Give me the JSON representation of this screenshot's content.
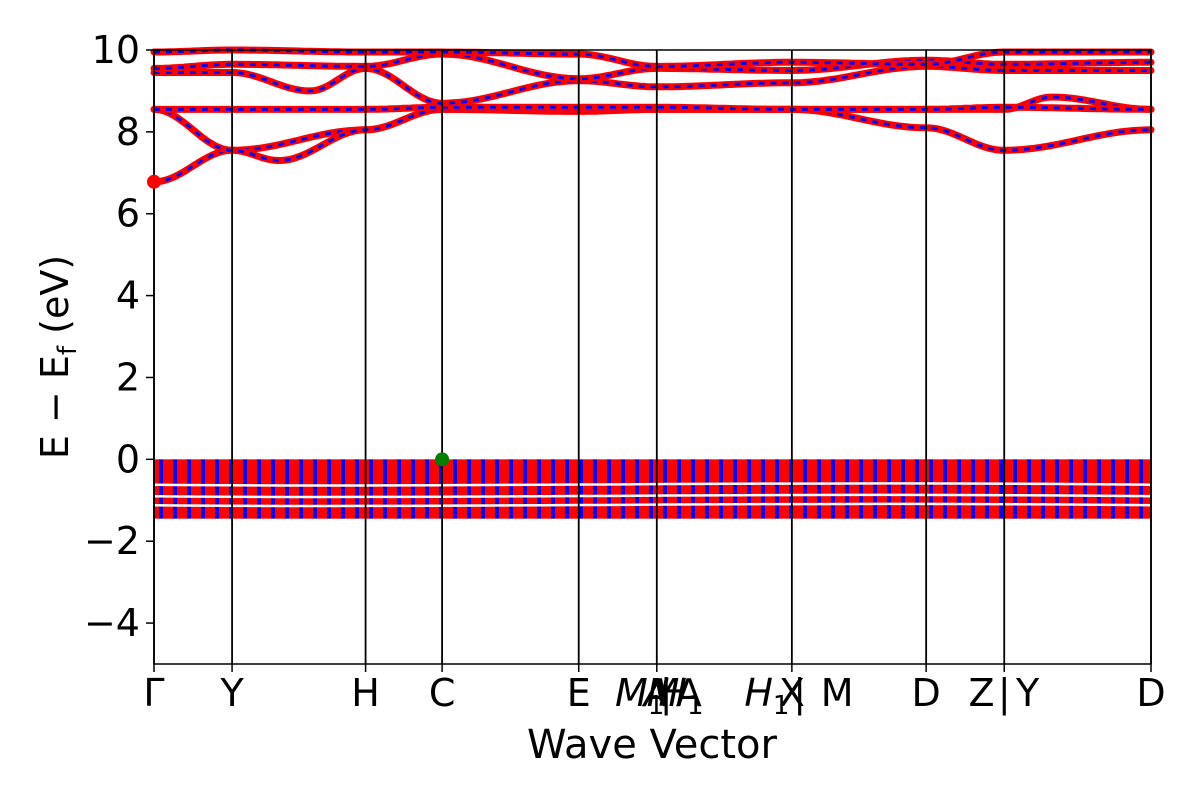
{
  "chart_data": {
    "type": "line",
    "title": "",
    "xlabel": "Wave Vector",
    "ylabel": "E − E_f (eV)",
    "ylabel_main": "E − E",
    "ylabel_sub": "f",
    "ylabel_unit": "(eV)",
    "ylim": [
      -5,
      10
    ],
    "xlim": [
      0,
      12.77
    ],
    "yticks": [
      -4,
      -2,
      0,
      2,
      4,
      6,
      8,
      10
    ],
    "ytick_labels": [
      "−4",
      "−2",
      "0",
      "2",
      "4",
      "6",
      "8",
      "10"
    ],
    "grid": false,
    "legend": "none",
    "kpoints": [
      {
        "label": "Γ",
        "x": 0.0,
        "sub": "",
        "line": true
      },
      {
        "label": "Y",
        "x": 1.0,
        "sub": "",
        "line": true
      },
      {
        "label": "H",
        "x": 2.71,
        "sub": "",
        "line": true
      },
      {
        "label": "C",
        "x": 3.69,
        "sub": "",
        "line": true
      },
      {
        "label": "E",
        "x": 5.44,
        "sub": "",
        "line": true
      },
      {
        "label": "M",
        "x": 6.22,
        "sub": "1",
        "italic": true,
        "line": false
      },
      {
        "label": "M",
        "x": 6.52,
        "sub": "",
        "italic": true,
        "line": false
      },
      {
        "label": "A",
        "x": 6.44,
        "sub": "",
        "italic": true,
        "line": true
      },
      {
        "label": "|",
        "x": 6.56,
        "sub": "",
        "line": false
      },
      {
        "label": "H",
        "x": 6.75,
        "sub": "1",
        "italic": true,
        "line": false
      },
      {
        "label": "A",
        "x": 6.85,
        "sub": "",
        "line": false
      },
      {
        "label": "H",
        "x": 7.85,
        "sub": "1",
        "italic": true,
        "line": false
      },
      {
        "label": "X",
        "x": 8.17,
        "sub": "",
        "line": true
      },
      {
        "label": "|",
        "x": 8.27,
        "sub": "",
        "line": false
      },
      {
        "label": "M",
        "x": 8.75,
        "sub": "",
        "line": false
      },
      {
        "label": "D",
        "x": 9.89,
        "sub": "",
        "line": true
      },
      {
        "label": "Z",
        "x": 10.6,
        "sub": "",
        "line": false
      },
      {
        "label": "|",
        "x": 10.89,
        "sub": "",
        "line": true
      },
      {
        "label": "Y",
        "x": 11.19,
        "sub": "",
        "line": false
      },
      {
        "label": "D",
        "x": 12.77,
        "sub": "",
        "line": true
      }
    ],
    "segments": [
      0.0,
      1.0,
      2.71,
      3.69,
      5.44,
      6.44,
      8.17,
      9.89,
      10.89,
      12.77
    ],
    "band_colors": {
      "spin_up": "#ff0000",
      "spin_down": "#0000ff"
    },
    "conduction_bands": [
      {
        "x": [
          0.0,
          1.0,
          2.71,
          3.69,
          5.44,
          6.44,
          8.17,
          9.89,
          10.89,
          12.77
        ],
        "y": [
          6.78,
          7.55,
          8.05,
          8.55,
          8.5,
          8.55,
          8.55,
          8.1,
          7.55,
          8.05
        ]
      },
      {
        "x": [
          0.0,
          1.0,
          1.6,
          2.71,
          3.69,
          5.44,
          6.44,
          8.17,
          9.89,
          10.89,
          11.5,
          12.77
        ],
        "y": [
          8.55,
          7.55,
          7.3,
          8.05,
          8.55,
          8.55,
          8.55,
          8.55,
          8.55,
          8.55,
          8.85,
          8.55
        ]
      },
      {
        "x": [
          0.0,
          1.0,
          2.71,
          3.69,
          5.44,
          6.44,
          8.17,
          9.89,
          10.89,
          12.77
        ],
        "y": [
          8.55,
          8.55,
          8.55,
          8.6,
          8.6,
          8.6,
          8.55,
          8.55,
          8.6,
          8.55
        ]
      },
      {
        "x": [
          0.0,
          1.0,
          2.0,
          2.71,
          3.69,
          5.44,
          6.44,
          8.17,
          9.89,
          10.89,
          12.77
        ],
        "y": [
          9.45,
          9.45,
          9.0,
          9.55,
          8.7,
          9.25,
          9.1,
          9.2,
          9.6,
          9.5,
          9.5
        ]
      },
      {
        "x": [
          0.0,
          1.0,
          2.71,
          3.69,
          5.44,
          6.44,
          8.17,
          9.89,
          10.89,
          12.77
        ],
        "y": [
          9.55,
          9.65,
          9.6,
          9.9,
          9.3,
          9.55,
          9.5,
          9.75,
          9.65,
          9.7
        ]
      },
      {
        "x": [
          0.0,
          1.0,
          2.71,
          3.69,
          5.44,
          6.44,
          8.17,
          9.89,
          10.89,
          12.77
        ],
        "y": [
          9.95,
          10.0,
          9.95,
          9.95,
          9.9,
          9.6,
          9.7,
          9.65,
          9.95,
          9.95
        ]
      }
    ],
    "valence_band_region": {
      "top": 0.0,
      "bottom": -1.45,
      "gap_lines": [
        -0.62,
        -0.9,
        -1.12
      ]
    },
    "markers": [
      {
        "name": "cbm",
        "x": 0.0,
        "y": 6.78,
        "color": "#ff0000"
      },
      {
        "name": "vbm",
        "x": 3.69,
        "y": 0.0,
        "color": "#008000"
      }
    ]
  }
}
